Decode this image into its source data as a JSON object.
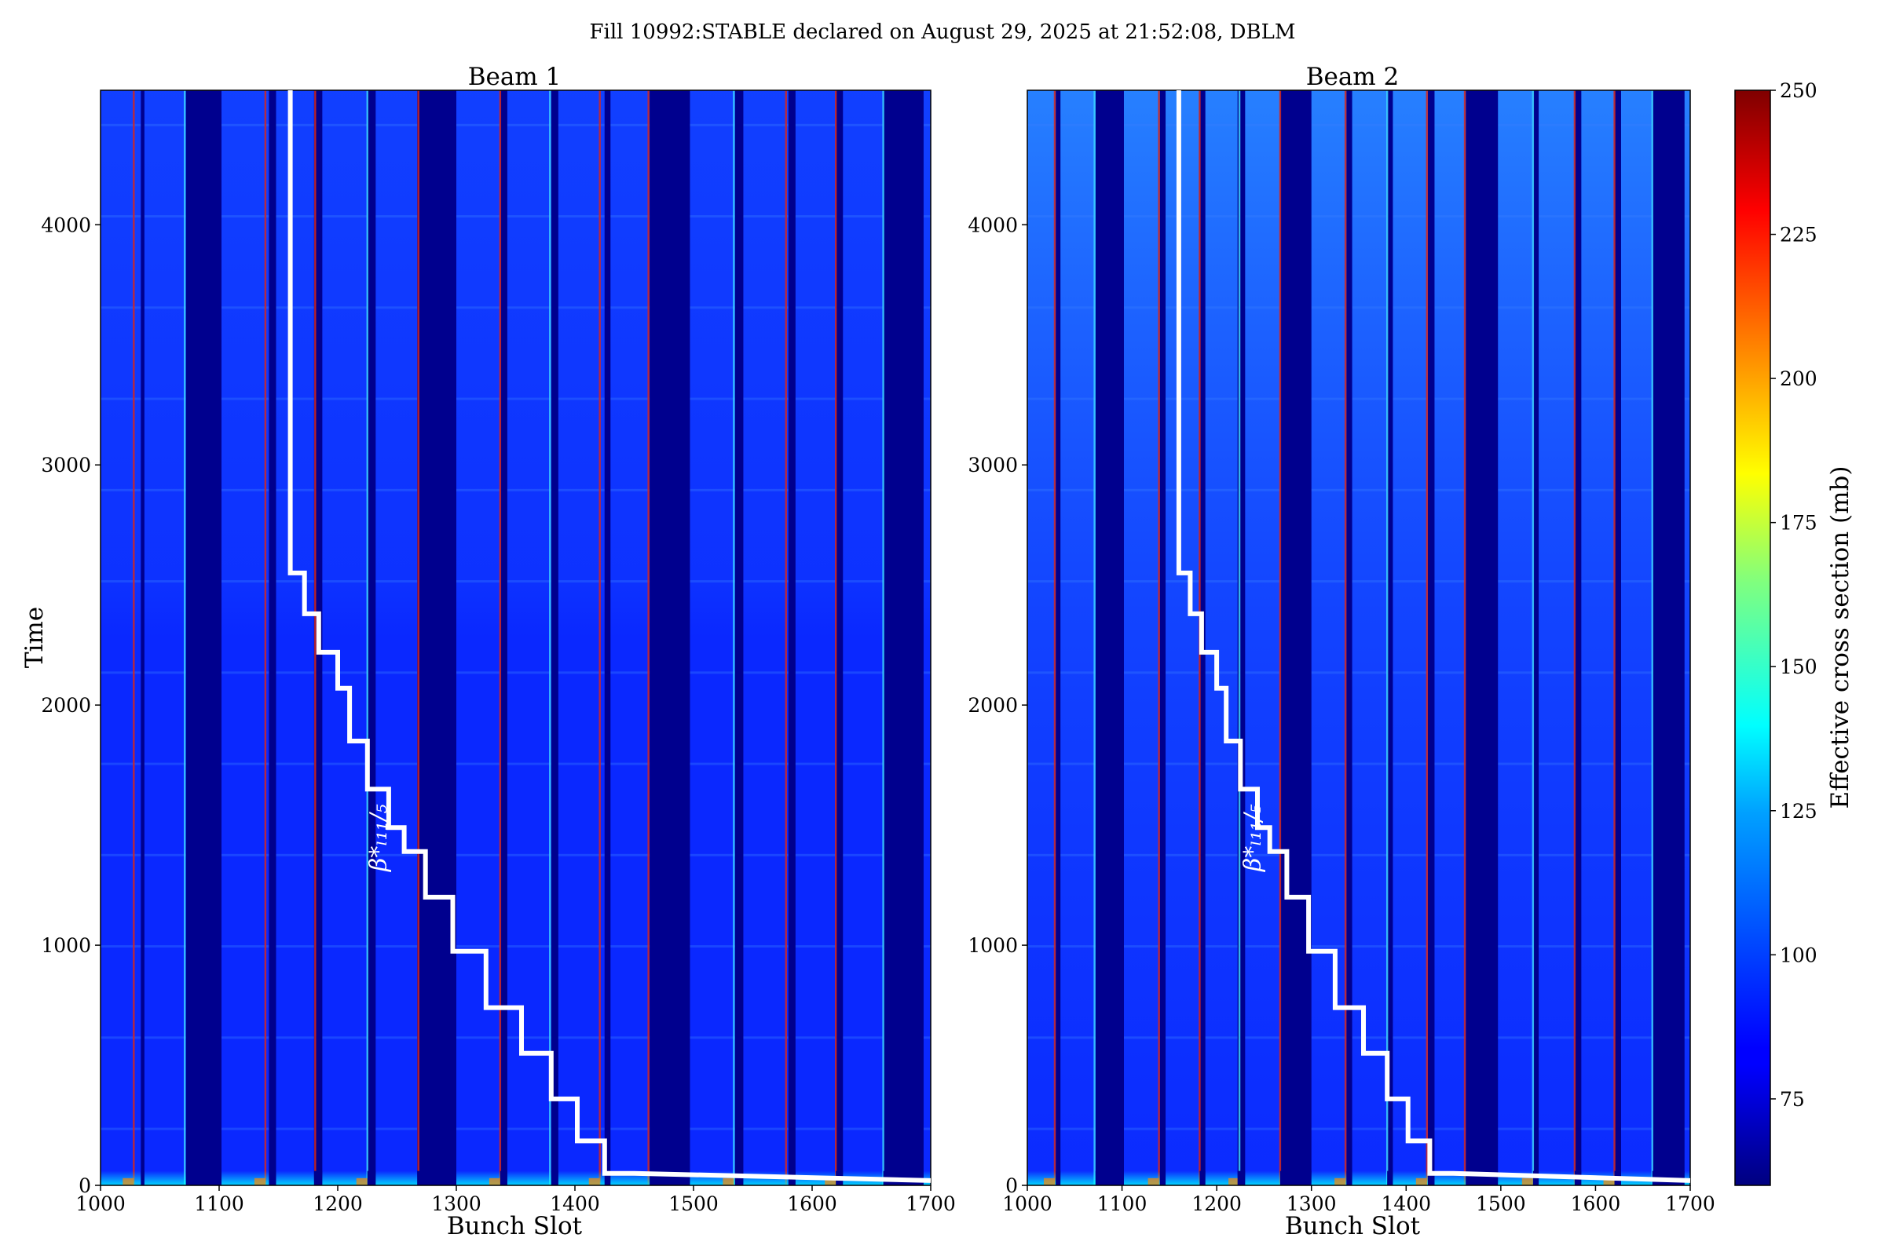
{
  "figure": {
    "suptitle": "Fill 10992:STABLE declared on August 29, 2025 at 21:52:08, DBLM"
  },
  "chart_data": [
    {
      "type": "heatmap",
      "title": "Beam 1",
      "xlabel": "Bunch Slot",
      "ylabel": "Time",
      "xlim": [
        1000,
        1700
      ],
      "ylim": [
        0,
        4560
      ],
      "xticks": [
        "1000",
        "1100",
        "1200",
        "1300",
        "1400",
        "1500",
        "1600",
        "1700"
      ],
      "yticks": [
        "0",
        "1000",
        "2000",
        "3000",
        "4000"
      ],
      "empty_slot_ranges": [
        [
          1034,
          1037
        ],
        [
          1072,
          1102
        ],
        [
          1142,
          1148
        ],
        [
          1180,
          1187
        ],
        [
          1225,
          1232
        ],
        [
          1267,
          1300
        ],
        [
          1337,
          1343
        ],
        [
          1380,
          1386
        ],
        [
          1425,
          1430
        ],
        [
          1463,
          1497
        ],
        [
          1535,
          1542
        ],
        [
          1580,
          1586
        ],
        [
          1620,
          1626
        ],
        [
          1660,
          1694
        ]
      ],
      "bright_edges": [
        1028,
        1071,
        1139,
        1181,
        1225,
        1268,
        1337,
        1379,
        1421,
        1462,
        1534,
        1578,
        1620,
        1660
      ],
      "annotation": "β*ₗ₁₁/₅",
      "beta_star_step_line": {
        "color": "#ffffff",
        "points": [
          [
            1160,
            4560
          ],
          [
            1160,
            2550
          ],
          [
            1172,
            2550
          ],
          [
            1172,
            2380
          ],
          [
            1184,
            2380
          ],
          [
            1184,
            2220
          ],
          [
            1200,
            2220
          ],
          [
            1200,
            2070
          ],
          [
            1210,
            2070
          ],
          [
            1210,
            1850
          ],
          [
            1225,
            1850
          ],
          [
            1225,
            1650
          ],
          [
            1243,
            1650
          ],
          [
            1243,
            1490
          ],
          [
            1256,
            1490
          ],
          [
            1256,
            1390
          ],
          [
            1274,
            1390
          ],
          [
            1274,
            1200
          ],
          [
            1297,
            1200
          ],
          [
            1297,
            975
          ],
          [
            1325,
            975
          ],
          [
            1325,
            740
          ],
          [
            1355,
            740
          ],
          [
            1355,
            550
          ],
          [
            1380,
            550
          ],
          [
            1380,
            360
          ],
          [
            1402,
            360
          ],
          [
            1402,
            185
          ],
          [
            1425,
            185
          ],
          [
            1425,
            50
          ],
          [
            1450,
            50
          ],
          [
            1700,
            20
          ]
        ]
      }
    },
    {
      "type": "heatmap",
      "title": "Beam 2",
      "xlabel": "Bunch Slot",
      "ylabel": "",
      "xlim": [
        1000,
        1700
      ],
      "ylim": [
        0,
        4560
      ],
      "xticks": [
        "1000",
        "1100",
        "1200",
        "1300",
        "1400",
        "1500",
        "1600",
        "1700"
      ],
      "yticks": [
        "0",
        "1000",
        "2000",
        "3000",
        "4000"
      ],
      "empty_slot_ranges": [
        [
          1030,
          1035
        ],
        [
          1072,
          1102
        ],
        [
          1140,
          1146
        ],
        [
          1182,
          1188
        ],
        [
          1222,
          1230
        ],
        [
          1267,
          1300
        ],
        [
          1337,
          1343
        ],
        [
          1380,
          1386
        ],
        [
          1423,
          1430
        ],
        [
          1463,
          1497
        ],
        [
          1534,
          1540
        ],
        [
          1578,
          1585
        ],
        [
          1620,
          1627
        ],
        [
          1660,
          1694
        ]
      ],
      "bright_edges": [
        1029,
        1071,
        1139,
        1182,
        1224,
        1267,
        1336,
        1380,
        1422,
        1462,
        1534,
        1578,
        1620,
        1660
      ],
      "annotation": "β*ₗ₁₁/₅",
      "beta_star_step_line": {
        "color": "#ffffff",
        "points": [
          [
            1160,
            4560
          ],
          [
            1160,
            2550
          ],
          [
            1172,
            2550
          ],
          [
            1172,
            2380
          ],
          [
            1184,
            2380
          ],
          [
            1184,
            2220
          ],
          [
            1200,
            2220
          ],
          [
            1200,
            2070
          ],
          [
            1210,
            2070
          ],
          [
            1210,
            1850
          ],
          [
            1225,
            1850
          ],
          [
            1225,
            1650
          ],
          [
            1243,
            1650
          ],
          [
            1243,
            1490
          ],
          [
            1256,
            1490
          ],
          [
            1256,
            1390
          ],
          [
            1274,
            1390
          ],
          [
            1274,
            1200
          ],
          [
            1297,
            1200
          ],
          [
            1297,
            975
          ],
          [
            1325,
            975
          ],
          [
            1325,
            740
          ],
          [
            1355,
            740
          ],
          [
            1355,
            550
          ],
          [
            1380,
            550
          ],
          [
            1380,
            360
          ],
          [
            1402,
            360
          ],
          [
            1402,
            185
          ],
          [
            1425,
            185
          ],
          [
            1425,
            50
          ],
          [
            1450,
            50
          ],
          [
            1700,
            20
          ]
        ]
      }
    }
  ],
  "colorbar": {
    "label": "Effective cross section (mb)",
    "range": [
      60,
      250
    ],
    "colormap": "jet",
    "ticks": [
      "75",
      "100",
      "125",
      "150",
      "175",
      "200",
      "225",
      "250"
    ],
    "colors": [
      "#00007f",
      "#0000ff",
      "#007fff",
      "#00ffff",
      "#7fff7f",
      "#ffff00",
      "#ff7f00",
      "#ff0000",
      "#7f0000"
    ]
  },
  "colors": {
    "filled_base": "#0a28ff",
    "empty": "#00008e",
    "edge": "#d4281e",
    "cyan_edge": "#3cd2ff"
  }
}
